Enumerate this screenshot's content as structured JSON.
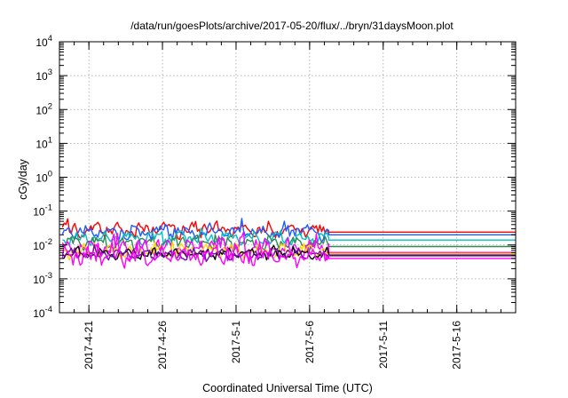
{
  "chart_data": {
    "type": "line",
    "title": "/data/run/goesPlots/archive/2017-05-20/flux/../bryn/31daysMoon.plot",
    "xlabel": "Coordinated Universal Time (UTC)",
    "ylabel": "cGy/day",
    "yscale": "log",
    "ylim": [
      0.0001,
      10000
    ],
    "xlim": [
      "2017-04-19",
      "2017-05-20"
    ],
    "grid": true,
    "legend": "none",
    "x_ticks": [
      {
        "date": "2017-04-21",
        "label": "2017-4-21"
      },
      {
        "date": "2017-04-26",
        "label": "2017-4-26"
      },
      {
        "date": "2017-05-01",
        "label": "2017-5-1"
      },
      {
        "date": "2017-05-06",
        "label": "2017-5-6"
      },
      {
        "date": "2017-05-11",
        "label": "2017-5-11"
      },
      {
        "date": "2017-05-16",
        "label": "2017-5-16"
      }
    ],
    "y_ticks": [
      {
        "value": 0.0001,
        "base": "10",
        "exp": "-4"
      },
      {
        "value": 0.001,
        "base": "10",
        "exp": "-3"
      },
      {
        "value": 0.01,
        "base": "10",
        "exp": "-2"
      },
      {
        "value": 0.1,
        "base": "10",
        "exp": "-1"
      },
      {
        "value": 1,
        "base": "10",
        "exp": "0"
      },
      {
        "value": 10,
        "base": "10",
        "exp": "1"
      },
      {
        "value": 100,
        "base": "10",
        "exp": "2"
      },
      {
        "value": 1000,
        "base": "10",
        "exp": "3"
      },
      {
        "value": 10000,
        "base": "10",
        "exp": "4"
      }
    ],
    "data_end": "2017-05-07",
    "series": [
      {
        "color": "#ff0000",
        "median": 0.028,
        "spread": 0.22,
        "last": 0.024
      },
      {
        "color": "#1e5aff",
        "median": 0.024,
        "spread": 0.22,
        "last": 0.02
      },
      {
        "color": "#00bfbf",
        "median": 0.016,
        "spread": 0.2,
        "last": 0.014
      },
      {
        "color": "#2e8b57",
        "median": 0.011,
        "spread": 0.2,
        "last": 0.009
      },
      {
        "color": "#ff00ff",
        "median": 0.008,
        "spread": 0.3,
        "last": 0.006
      },
      {
        "color": "#ffd700",
        "median": 0.0065,
        "spread": 0.2,
        "last": 0.0055
      },
      {
        "color": "#000000",
        "median": 0.0055,
        "spread": 0.15,
        "last": 0.005
      },
      {
        "color": "#6a0dad",
        "median": 0.0052,
        "spread": 0.15,
        "last": 0.0048
      },
      {
        "color": "#ff00ff",
        "median": 0.0045,
        "spread": 0.28,
        "last": 0.004
      }
    ]
  }
}
